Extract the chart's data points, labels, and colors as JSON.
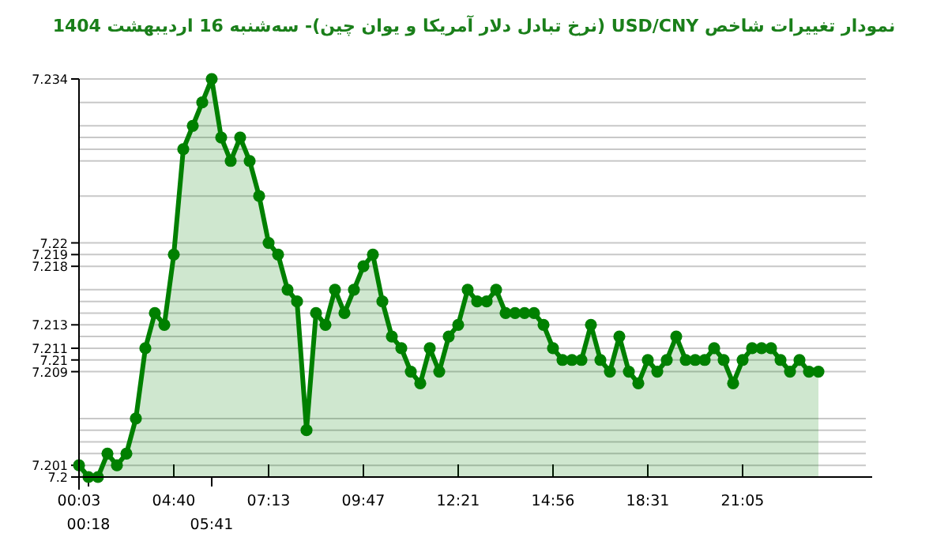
{
  "chart_data": {
    "type": "area",
    "title": "نمودار تغییرات شاخص USD/CNY (نرخ تبادل دلار آمریکا و یوان چین)- سه‌شنبه  16 اردیبهشت 1404",
    "annotations": [
      "00:18",
      "05:41"
    ],
    "categories": [
      "00:03",
      null,
      null,
      null,
      null,
      null,
      null,
      null,
      null,
      null,
      "04:40",
      null,
      null,
      null,
      null,
      null,
      null,
      null,
      null,
      null,
      "07:13",
      null,
      null,
      null,
      null,
      null,
      null,
      null,
      null,
      null,
      "09:47",
      null,
      null,
      null,
      null,
      null,
      null,
      null,
      null,
      null,
      "12:21",
      null,
      null,
      null,
      null,
      null,
      null,
      null,
      null,
      null,
      "14:56",
      null,
      null,
      null,
      null,
      null,
      null,
      null,
      null,
      null,
      "18:31",
      null,
      null,
      null,
      null,
      null,
      null,
      null,
      null,
      null,
      "21:05",
      null,
      null,
      null,
      null,
      null,
      null,
      null,
      null
    ],
    "series": [
      {
        "color": "#008000",
        "values": [
          7.201,
          7.2,
          7.2,
          7.202,
          7.201,
          7.202,
          7.205,
          7.211,
          7.214,
          7.213,
          7.219,
          7.228,
          7.23,
          7.232,
          7.234,
          7.229,
          7.227,
          7.229,
          7.227,
          7.224,
          7.22,
          7.219,
          7.216,
          7.215,
          7.204,
          7.214,
          7.213,
          7.216,
          7.214,
          7.216,
          7.218,
          7.219,
          7.215,
          7.212,
          7.211,
          7.209,
          7.208,
          7.211,
          7.209,
          7.212,
          7.213,
          7.216,
          7.215,
          7.215,
          7.216,
          7.214,
          7.214,
          7.214,
          7.214,
          7.213,
          7.211,
          7.21,
          7.21,
          7.21,
          7.213,
          7.21,
          7.209,
          7.212,
          7.209,
          7.208,
          7.21,
          7.209,
          7.21,
          7.212,
          7.21,
          7.21,
          7.21,
          7.211,
          7.21,
          7.208,
          7.21,
          7.211,
          7.211,
          7.211,
          7.21,
          7.209,
          7.21,
          7.209,
          7.209
        ]
      }
    ],
    "ylim": [
      7.2,
      7.234
    ],
    "yticks": [
      7.2,
      7.201,
      {
        "value": 7.202,
        "label": null
      },
      {
        "value": 7.203,
        "label": null
      },
      {
        "value": 7.204,
        "label": null
      },
      {
        "value": 7.205,
        "label": null
      },
      7.209,
      7.21,
      7.211,
      {
        "value": 7.212,
        "label": null
      },
      7.213,
      {
        "value": 7.214,
        "label": null
      },
      {
        "value": 7.215,
        "label": null
      },
      {
        "value": 7.216,
        "label": null
      },
      7.218,
      7.219,
      7.22,
      {
        "value": 7.224,
        "label": null
      },
      {
        "value": 7.227,
        "label": null
      },
      {
        "value": 7.228,
        "label": null
      },
      {
        "value": 7.229,
        "label": null
      },
      {
        "value": 7.23,
        "label": null
      },
      {
        "value": 7.232,
        "label": null
      },
      7.234
    ],
    "grid": "y",
    "marker": "circle"
  }
}
